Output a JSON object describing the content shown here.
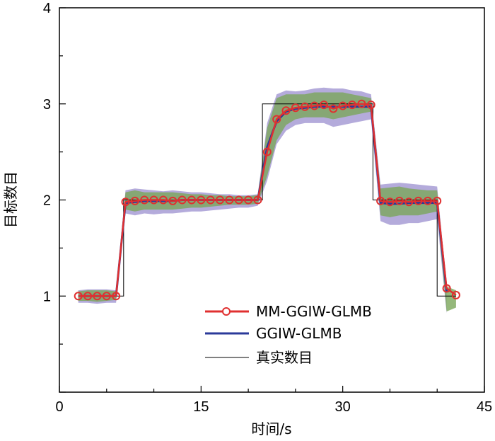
{
  "chart_data": {
    "type": "line",
    "title": "",
    "xlabel": "时间/s",
    "ylabel": "目标数目",
    "xlim": [
      0,
      45
    ],
    "ylim": [
      0,
      4
    ],
    "xticks": [
      0,
      15,
      30,
      45
    ],
    "yticks": [
      1,
      2,
      3,
      4
    ],
    "grid": false,
    "legend_position": "bottom-center",
    "series": [
      {
        "name": "真实数目",
        "color": "#000000",
        "style": "thin-step",
        "x": [
          2,
          6.8,
          6.8,
          21.5,
          21.5,
          33.2,
          33.2,
          40,
          40,
          42
        ],
        "y": [
          1,
          1,
          2,
          2,
          3,
          3,
          2,
          2,
          1,
          1
        ]
      },
      {
        "name": "GGIW-GLMB",
        "color": "#2b3a9a",
        "band_color": "#9b8fcf",
        "x": [
          2,
          3,
          4,
          5,
          6,
          7,
          8,
          9,
          10,
          11,
          12,
          13,
          14,
          15,
          16,
          17,
          18,
          19,
          20,
          21,
          22,
          23,
          24,
          25,
          26,
          27,
          28,
          29,
          30,
          31,
          32,
          33,
          34,
          35,
          36,
          37,
          38,
          39,
          40,
          41
        ],
        "y": [
          1.0,
          1.0,
          1.0,
          1.0,
          1.0,
          1.97,
          1.98,
          1.99,
          1.99,
          1.99,
          1.99,
          2.0,
          2.0,
          2.0,
          2.0,
          2.0,
          2.0,
          2.0,
          2.0,
          2.0,
          2.55,
          2.82,
          2.92,
          2.95,
          2.96,
          2.97,
          2.97,
          2.97,
          2.97,
          2.97,
          2.97,
          2.97,
          1.97,
          1.96,
          1.96,
          1.97,
          1.97,
          1.97,
          1.97,
          1.05
        ],
        "lower": [
          0.93,
          0.93,
          0.92,
          0.93,
          0.93,
          1.86,
          1.84,
          1.86,
          1.85,
          1.86,
          1.86,
          1.87,
          1.88,
          1.88,
          1.89,
          1.9,
          1.91,
          1.92,
          1.92,
          1.94,
          2.2,
          2.58,
          2.72,
          2.78,
          2.8,
          2.8,
          2.8,
          2.76,
          2.78,
          2.8,
          2.82,
          2.84,
          1.78,
          1.74,
          1.74,
          1.76,
          1.76,
          1.78,
          1.8,
          0.82
        ],
        "upper": [
          1.06,
          1.07,
          1.07,
          1.07,
          1.06,
          2.1,
          2.12,
          2.11,
          2.1,
          2.09,
          2.1,
          2.09,
          2.08,
          2.08,
          2.07,
          2.06,
          2.06,
          2.05,
          2.05,
          2.06,
          2.8,
          3.1,
          3.14,
          3.13,
          3.14,
          3.16,
          3.17,
          3.16,
          3.16,
          3.14,
          3.13,
          3.1,
          2.16,
          2.17,
          2.18,
          2.17,
          2.16,
          2.15,
          2.14,
          1.12
        ]
      },
      {
        "name": "MM-GGIW-GLMB",
        "color": "#e03030",
        "band_color": "#7aa65a",
        "marker": "circle",
        "x": [
          2,
          3,
          4,
          5,
          6,
          7,
          8,
          9,
          10,
          11,
          12,
          13,
          14,
          15,
          16,
          17,
          18,
          19,
          20,
          21,
          22,
          23,
          24,
          25,
          26,
          27,
          28,
          29,
          30,
          31,
          32,
          33,
          34,
          35,
          36,
          37,
          38,
          39,
          40,
          41,
          42
        ],
        "y": [
          1.0,
          1.0,
          1.0,
          1.0,
          1.0,
          1.98,
          1.99,
          2.0,
          2.0,
          2.0,
          1.99,
          2.0,
          2.0,
          2.0,
          2.0,
          2.0,
          2.0,
          2.0,
          2.0,
          2.0,
          2.5,
          2.84,
          2.93,
          2.96,
          2.97,
          2.98,
          2.99,
          2.95,
          2.98,
          2.99,
          3.0,
          2.99,
          1.99,
          1.98,
          1.99,
          1.98,
          1.99,
          1.99,
          1.99,
          1.08,
          1.01
        ],
        "lower": [
          0.95,
          0.95,
          0.94,
          0.95,
          0.96,
          1.9,
          1.88,
          1.9,
          1.9,
          1.9,
          1.9,
          1.91,
          1.92,
          1.92,
          1.93,
          1.94,
          1.95,
          1.95,
          1.95,
          1.96,
          2.25,
          2.62,
          2.78,
          2.84,
          2.86,
          2.86,
          2.86,
          2.84,
          2.86,
          2.88,
          2.9,
          2.92,
          1.84,
          1.82,
          1.84,
          1.84,
          1.84,
          1.86,
          1.88,
          0.84,
          0.88
        ],
        "upper": [
          1.05,
          1.06,
          1.06,
          1.06,
          1.05,
          2.08,
          2.1,
          2.08,
          2.08,
          2.08,
          2.08,
          2.07,
          2.06,
          2.06,
          2.05,
          2.05,
          2.04,
          2.04,
          2.04,
          2.05,
          2.75,
          3.06,
          3.1,
          3.1,
          3.1,
          3.12,
          3.12,
          3.12,
          3.12,
          3.1,
          3.08,
          3.06,
          2.12,
          2.13,
          2.14,
          2.12,
          2.11,
          2.1,
          2.1,
          1.1,
          1.06
        ]
      }
    ]
  }
}
